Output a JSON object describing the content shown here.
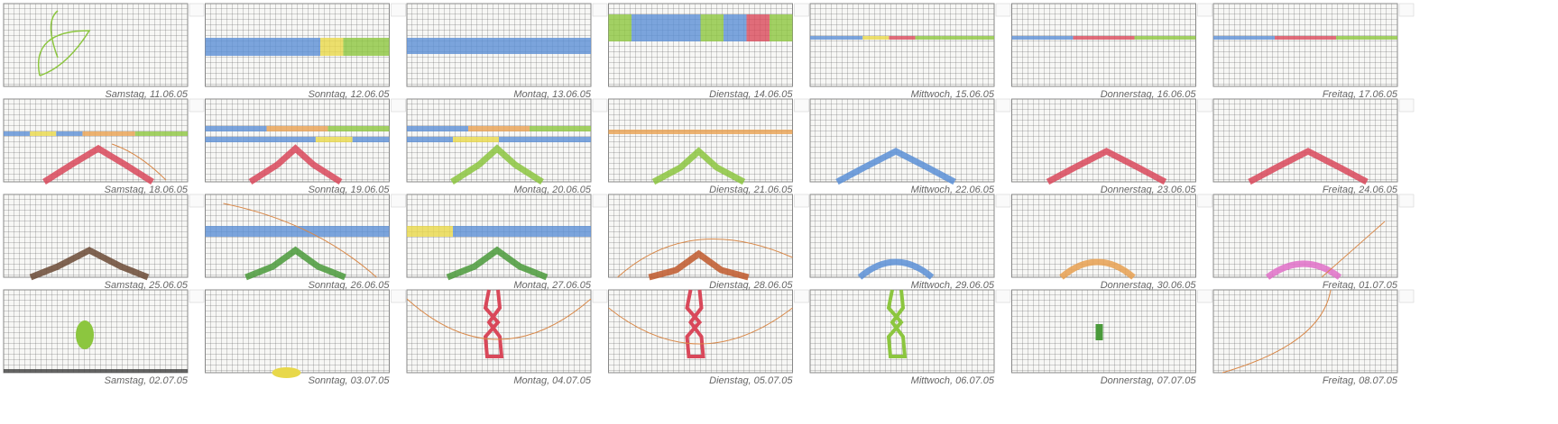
{
  "panels": [
    {
      "caption": "Samstag, 11.06.05"
    },
    {
      "caption": "Sonntag, 12.06.05"
    },
    {
      "caption": "Montag, 13.06.05"
    },
    {
      "caption": "Dienstag, 14.06.05"
    },
    {
      "caption": "Mittwoch, 15.06.05"
    },
    {
      "caption": "Donnerstag, 16.06.05"
    },
    {
      "caption": "Freitag, 17.06.05"
    },
    {
      "caption": "Samstag, 18.06.05"
    },
    {
      "caption": "Sonntag, 19.06.05"
    },
    {
      "caption": "Montag, 20.06.05"
    },
    {
      "caption": "Dienstag, 21.06.05"
    },
    {
      "caption": "Mittwoch, 22.06.05"
    },
    {
      "caption": "Donnerstag, 23.06.05"
    },
    {
      "caption": "Freitag, 24.06.05"
    },
    {
      "caption": "Samstag, 25.06.05"
    },
    {
      "caption": "Sonntag, 26.06.05"
    },
    {
      "caption": "Montag, 27.06.05"
    },
    {
      "caption": "Dienstag, 28.06.05"
    },
    {
      "caption": "Mittwoch, 29.06.05"
    },
    {
      "caption": "Donnerstag, 30.06.05"
    },
    {
      "caption": "Freitag, 01.07.05"
    },
    {
      "caption": "Samstag, 02.07.05"
    },
    {
      "caption": "Sonntag, 03.07.05"
    },
    {
      "caption": "Montag, 04.07.05"
    },
    {
      "caption": "Dienstag, 05.07.05"
    },
    {
      "caption": "Mittwoch, 06.07.05"
    },
    {
      "caption": "Donnerstag, 07.07.05"
    },
    {
      "caption": "Freitag, 08.07.05"
    }
  ]
}
